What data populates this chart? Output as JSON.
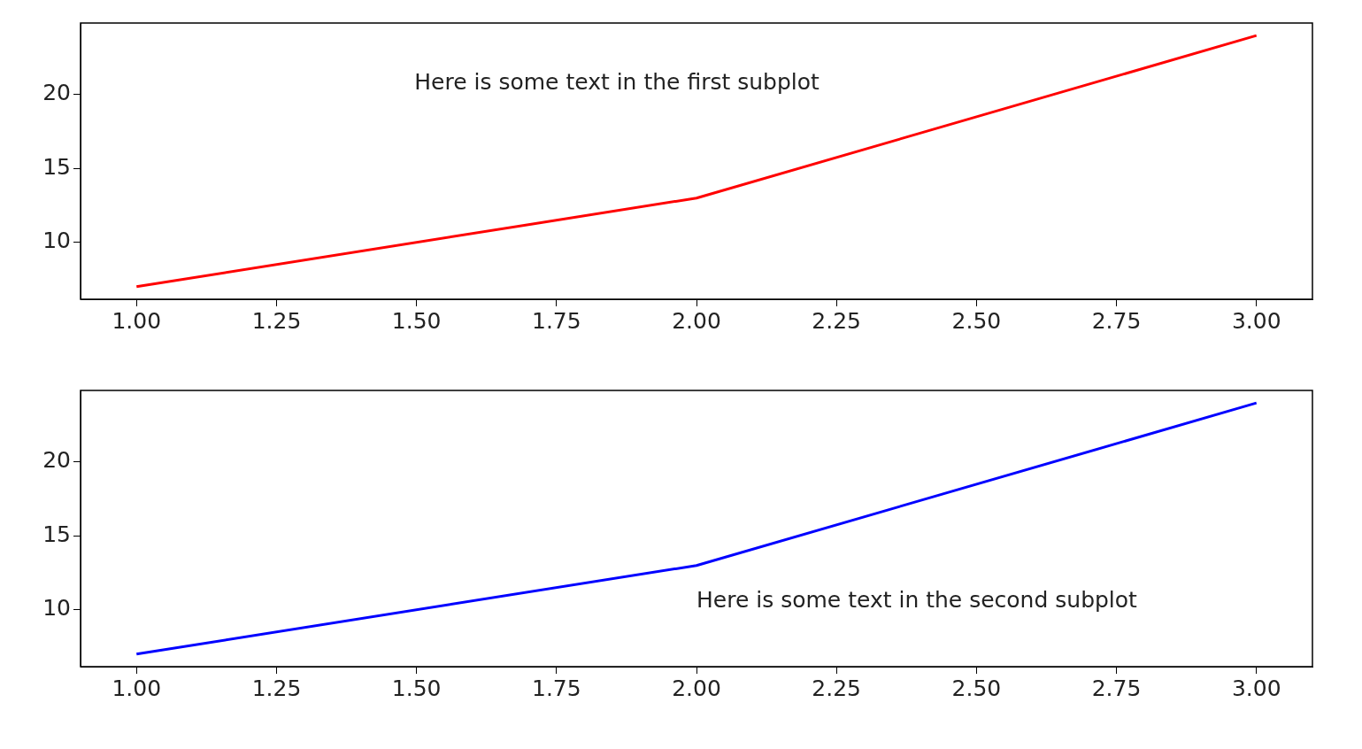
{
  "chart_data": [
    {
      "type": "line",
      "x": [
        1,
        2,
        3
      ],
      "series": [
        {
          "color": "#ff0000",
          "values": [
            7,
            13,
            24
          ]
        }
      ],
      "xlim": [
        0.9,
        3.1
      ],
      "ylim": [
        6.15,
        24.85
      ],
      "xticks": [
        {
          "value": 1,
          "label": "1.00"
        },
        {
          "value": 1.25,
          "label": "1.25"
        },
        {
          "value": 1.5,
          "label": "1.50"
        },
        {
          "value": 1.75,
          "label": "1.75"
        },
        {
          "value": 2,
          "label": "2.00"
        },
        {
          "value": 2.25,
          "label": "2.25"
        },
        {
          "value": 2.5,
          "label": "2.50"
        },
        {
          "value": 2.75,
          "label": "2.75"
        },
        {
          "value": 3,
          "label": "3.00"
        }
      ],
      "yticks": [
        10,
        15,
        20
      ],
      "annotations": [
        "Here is some text in the first subplot"
      ]
    },
    {
      "type": "line",
      "x": [
        1,
        2,
        3
      ],
      "series": [
        {
          "color": "#0000ff",
          "values": [
            7,
            13,
            24
          ]
        }
      ],
      "xlim": [
        0.9,
        3.1
      ],
      "ylim": [
        6.15,
        24.85
      ],
      "xticks": [
        {
          "value": 1,
          "label": "1.00"
        },
        {
          "value": 1.25,
          "label": "1.25"
        },
        {
          "value": 1.5,
          "label": "1.50"
        },
        {
          "value": 1.75,
          "label": "1.75"
        },
        {
          "value": 2,
          "label": "2.00"
        },
        {
          "value": 2.25,
          "label": "2.25"
        },
        {
          "value": 2.5,
          "label": "2.50"
        },
        {
          "value": 2.75,
          "label": "2.75"
        },
        {
          "value": 3,
          "label": "3.00"
        }
      ],
      "yticks": [
        10,
        15,
        20
      ],
      "annotations": [
        "Here is some text in the second subplot"
      ]
    }
  ]
}
